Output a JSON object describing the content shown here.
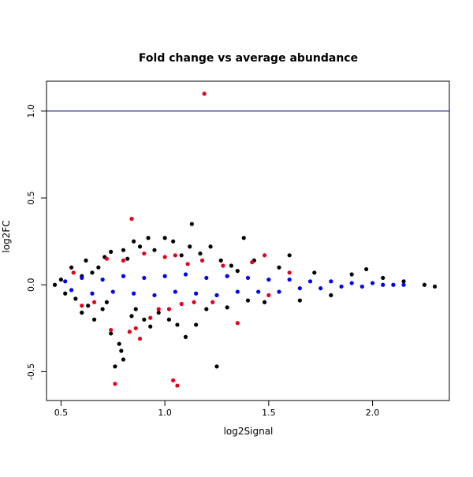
{
  "chart_data": {
    "type": "scatter",
    "title": "Fold change vs average abundance",
    "xlabel": "log2Signal",
    "ylabel": "log2FC",
    "xlim": [
      0.43,
      2.37
    ],
    "ylim": [
      -0.666,
      1.172
    ],
    "xticks": [
      {
        "value": 0.5,
        "label": "0.5"
      },
      {
        "value": 1.0,
        "label": "1.0"
      },
      {
        "value": 1.5,
        "label": "1.5"
      },
      {
        "value": 2.0,
        "label": "2.0"
      }
    ],
    "yticks": [
      {
        "value": -0.5,
        "label": "-0.5"
      },
      {
        "value": 0.0,
        "label": "0.0"
      },
      {
        "value": 0.5,
        "label": "0.5"
      },
      {
        "value": 1.0,
        "label": "1.0"
      }
    ],
    "reference_lines": [
      {
        "axis": "y",
        "value": 1.0,
        "color": "#00008b"
      }
    ],
    "grid": false,
    "legend": false,
    "series": [
      {
        "color": "#000000",
        "points": [
          [
            0.47,
            0.0
          ],
          [
            0.5,
            0.03
          ],
          [
            0.52,
            -0.05
          ],
          [
            0.55,
            0.1
          ],
          [
            0.57,
            -0.08
          ],
          [
            0.6,
            0.05
          ],
          [
            0.6,
            -0.16
          ],
          [
            0.62,
            0.14
          ],
          [
            0.63,
            -0.12
          ],
          [
            0.65,
            0.07
          ],
          [
            0.66,
            -0.2
          ],
          [
            0.68,
            0.1
          ],
          [
            0.7,
            -0.14
          ],
          [
            0.71,
            0.16
          ],
          [
            0.72,
            -0.1
          ],
          [
            0.74,
            0.19
          ],
          [
            0.74,
            -0.28
          ],
          [
            0.76,
            -0.47
          ],
          [
            0.78,
            -0.34
          ],
          [
            0.79,
            -0.38
          ],
          [
            0.8,
            -0.43
          ],
          [
            0.8,
            0.2
          ],
          [
            0.82,
            0.15
          ],
          [
            0.84,
            -0.18
          ],
          [
            0.85,
            0.25
          ],
          [
            0.86,
            -0.14
          ],
          [
            0.88,
            0.22
          ],
          [
            0.9,
            -0.2
          ],
          [
            0.92,
            0.27
          ],
          [
            0.93,
            -0.24
          ],
          [
            0.95,
            0.2
          ],
          [
            0.97,
            -0.16
          ],
          [
            1.0,
            0.27
          ],
          [
            1.02,
            -0.2
          ],
          [
            1.04,
            0.25
          ],
          [
            1.06,
            -0.23
          ],
          [
            1.08,
            0.17
          ],
          [
            1.1,
            -0.3
          ],
          [
            1.12,
            0.22
          ],
          [
            1.13,
            0.35
          ],
          [
            1.15,
            -0.23
          ],
          [
            1.17,
            0.18
          ],
          [
            1.2,
            -0.14
          ],
          [
            1.22,
            0.22
          ],
          [
            1.25,
            -0.47
          ],
          [
            1.27,
            0.14
          ],
          [
            1.3,
            -0.13
          ],
          [
            1.32,
            0.11
          ],
          [
            1.35,
            0.08
          ],
          [
            1.38,
            0.27
          ],
          [
            1.4,
            -0.09
          ],
          [
            1.43,
            0.14
          ],
          [
            1.48,
            -0.1
          ],
          [
            1.55,
            0.1
          ],
          [
            1.6,
            0.17
          ],
          [
            1.65,
            -0.09
          ],
          [
            1.72,
            0.07
          ],
          [
            1.8,
            -0.06
          ],
          [
            1.9,
            0.06
          ],
          [
            1.97,
            0.09
          ],
          [
            2.05,
            0.04
          ],
          [
            2.15,
            0.02
          ],
          [
            2.25,
            0.0
          ],
          [
            2.3,
            -0.01
          ]
        ]
      },
      {
        "color": "#0000ff",
        "points": [
          [
            0.52,
            0.02
          ],
          [
            0.55,
            -0.03
          ],
          [
            0.6,
            0.04
          ],
          [
            0.65,
            -0.05
          ],
          [
            0.7,
            0.03
          ],
          [
            0.75,
            -0.04
          ],
          [
            0.8,
            0.05
          ],
          [
            0.85,
            -0.05
          ],
          [
            0.9,
            0.04
          ],
          [
            0.95,
            -0.06
          ],
          [
            1.0,
            0.05
          ],
          [
            1.05,
            -0.04
          ],
          [
            1.1,
            0.06
          ],
          [
            1.15,
            -0.05
          ],
          [
            1.2,
            0.04
          ],
          [
            1.25,
            -0.06
          ],
          [
            1.3,
            0.05
          ],
          [
            1.35,
            -0.04
          ],
          [
            1.4,
            0.04
          ],
          [
            1.45,
            -0.04
          ],
          [
            1.5,
            0.03
          ],
          [
            1.55,
            -0.04
          ],
          [
            1.6,
            0.03
          ],
          [
            1.65,
            -0.02
          ],
          [
            1.7,
            0.02
          ],
          [
            1.75,
            -0.02
          ],
          [
            1.8,
            0.02
          ],
          [
            1.85,
            -0.01
          ],
          [
            1.9,
            0.01
          ],
          [
            1.95,
            -0.01
          ],
          [
            2.0,
            0.01
          ],
          [
            2.05,
            0.0
          ],
          [
            2.1,
            0.0
          ],
          [
            2.15,
            0.0
          ]
        ]
      },
      {
        "color": "#e3001b",
        "points": [
          [
            1.19,
            1.1
          ],
          [
            0.84,
            0.38
          ],
          [
            0.76,
            -0.57
          ],
          [
            1.04,
            -0.55
          ],
          [
            1.06,
            -0.58
          ],
          [
            0.56,
            0.07
          ],
          [
            0.6,
            -0.12
          ],
          [
            0.66,
            -0.1
          ],
          [
            0.72,
            0.15
          ],
          [
            0.74,
            -0.26
          ],
          [
            0.8,
            0.14
          ],
          [
            0.83,
            -0.27
          ],
          [
            0.86,
            -0.25
          ],
          [
            0.88,
            -0.31
          ],
          [
            0.9,
            0.18
          ],
          [
            0.93,
            -0.19
          ],
          [
            0.97,
            -0.14
          ],
          [
            1.0,
            0.16
          ],
          [
            1.02,
            -0.14
          ],
          [
            1.05,
            0.17
          ],
          [
            1.08,
            -0.11
          ],
          [
            1.11,
            0.12
          ],
          [
            1.14,
            -0.1
          ],
          [
            1.18,
            0.14
          ],
          [
            1.23,
            -0.1
          ],
          [
            1.28,
            0.11
          ],
          [
            1.35,
            -0.22
          ],
          [
            1.42,
            0.13
          ],
          [
            1.48,
            0.17
          ],
          [
            1.5,
            -0.06
          ],
          [
            1.6,
            0.07
          ]
        ]
      }
    ]
  }
}
